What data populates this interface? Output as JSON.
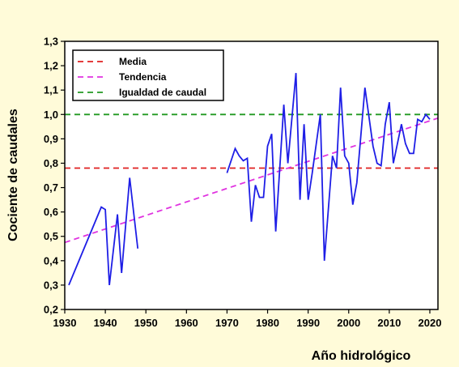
{
  "chart_data": {
    "type": "line",
    "title": "",
    "xlabel": "Año hidrológico",
    "ylabel": "Cociente de caudales",
    "xlim": [
      1930,
      2022
    ],
    "ylim": [
      0.2,
      1.3
    ],
    "x_ticks": [
      1930,
      1940,
      1950,
      1960,
      1970,
      1980,
      1990,
      2000,
      2010,
      2020
    ],
    "y_ticks": [
      "0,2",
      "0,3",
      "0,4",
      "0,5",
      "0,6",
      "0,7",
      "0,8",
      "0,9",
      "1,0",
      "1,1",
      "1,2",
      "1,3"
    ],
    "grid": false,
    "legend_position": "top-left",
    "series": [
      {
        "key": "observed",
        "color": "#1e1ee6",
        "segments": [
          {
            "x": [
              1931,
              1939,
              1940,
              1941,
              1943,
              1944,
              1946,
              1948
            ],
            "y": [
              0.3,
              0.62,
              0.61,
              0.3,
              0.59,
              0.35,
              0.74,
              0.45
            ]
          },
          {
            "x": [
              1970,
              1972,
              1973,
              1974,
              1975,
              1976,
              1977,
              1978,
              1979,
              1980,
              1981,
              1982,
              1984,
              1985,
              1987,
              1988,
              1989,
              1990,
              1991,
              1993,
              1994,
              1996,
              1997,
              1998,
              1999,
              2000,
              2001,
              2002,
              2004,
              2006,
              2007,
              2008,
              2009,
              2010,
              2011,
              2013,
              2014,
              2015,
              2016,
              2017,
              2018,
              2019,
              2020
            ],
            "y": [
              0.76,
              0.86,
              0.83,
              0.81,
              0.82,
              0.56,
              0.71,
              0.66,
              0.66,
              0.87,
              0.92,
              0.52,
              1.04,
              0.8,
              1.17,
              0.65,
              0.96,
              0.65,
              0.76,
              1.0,
              0.4,
              0.83,
              0.78,
              1.11,
              0.83,
              0.8,
              0.63,
              0.72,
              1.11,
              0.87,
              0.8,
              0.79,
              0.96,
              1.05,
              0.8,
              0.96,
              0.88,
              0.84,
              0.84,
              0.98,
              0.97,
              1.0,
              0.98
            ]
          }
        ]
      },
      {
        "key": "media",
        "name": "Media",
        "color": "#e02020",
        "dashed": true,
        "x": [
          1930,
          2022
        ],
        "y": [
          0.78,
          0.78
        ]
      },
      {
        "key": "tendencia",
        "name": "Tendencia",
        "color": "#e033e0",
        "dashed": true,
        "x": [
          1930,
          2022
        ],
        "y": [
          0.475,
          0.985
        ]
      },
      {
        "key": "igualdad",
        "name": "Igualdad de caudal",
        "color": "#229922",
        "dashed": true,
        "x": [
          1930,
          2022
        ],
        "y": [
          1.0,
          1.0
        ]
      }
    ]
  }
}
